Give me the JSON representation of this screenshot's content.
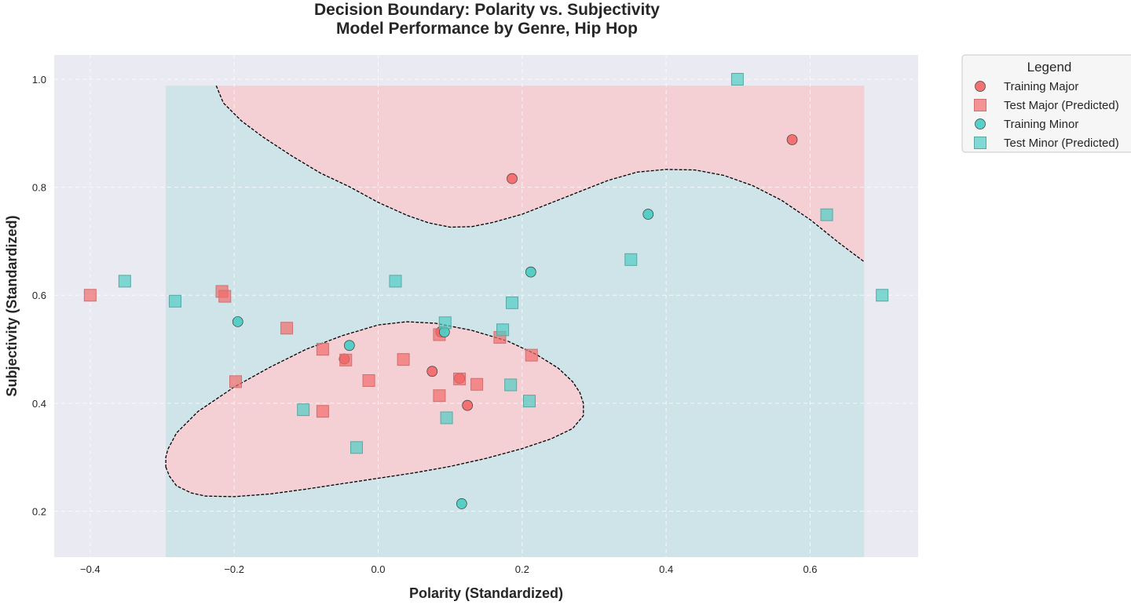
{
  "chart_data": {
    "type": "scatter",
    "title": "Decision Boundary: Polarity vs. Subjectivity",
    "subtitle": "Model Performance by Genre, Hip Hop",
    "xlabel": "Polarity (Standardized)",
    "ylabel": "Subjectivity (Standardized)",
    "xlim": [
      -0.45,
      0.75
    ],
    "ylim": [
      0.115,
      1.045
    ],
    "xticks": [
      -0.4,
      -0.2,
      0.0,
      0.2,
      0.4,
      0.6
    ],
    "xtick_labels": [
      "−0.4",
      "−0.2",
      "0.0",
      "0.2",
      "0.4",
      "0.6"
    ],
    "yticks": [
      0.2,
      0.4,
      0.6,
      0.8,
      1.0
    ],
    "ytick_labels": [
      "0.2",
      "0.4",
      "0.6",
      "0.8",
      "1.0"
    ],
    "grid": true,
    "legend": {
      "title": "Legend",
      "placement": "outside-top-right",
      "entries": [
        "Training Major",
        "Test Major (Predicted)",
        "Training Minor",
        "Test Minor (Predicted)"
      ]
    },
    "colors": {
      "major": "#f26b6b",
      "minor": "#4ecdc4",
      "major_region": "#f4cfd4",
      "minor_region": "#cfe4e8",
      "plot_background": "#eaeaf2",
      "boundary": "#000000"
    },
    "decision_regions": {
      "extent_x": [
        -0.295,
        0.675
      ],
      "extent_y": [
        0.115,
        0.988
      ],
      "default_class": "minor",
      "major_regions": [
        {
          "name": "upper-major-region",
          "boundary": [
            [
              -0.225,
              0.988
            ],
            [
              -0.215,
              0.956
            ],
            [
              -0.19,
              0.923
            ],
            [
              -0.16,
              0.893
            ],
            [
              -0.12,
              0.858
            ],
            [
              -0.08,
              0.826
            ],
            [
              -0.04,
              0.801
            ],
            [
              0.0,
              0.772
            ],
            [
              0.04,
              0.748
            ],
            [
              0.07,
              0.734
            ],
            [
              0.1,
              0.726
            ],
            [
              0.13,
              0.727
            ],
            [
              0.16,
              0.735
            ],
            [
              0.2,
              0.75
            ],
            [
              0.24,
              0.771
            ],
            [
              0.28,
              0.792
            ],
            [
              0.32,
              0.813
            ],
            [
              0.36,
              0.828
            ],
            [
              0.4,
              0.833
            ],
            [
              0.44,
              0.832
            ],
            [
              0.48,
              0.822
            ],
            [
              0.52,
              0.803
            ],
            [
              0.56,
              0.776
            ],
            [
              0.6,
              0.74
            ],
            [
              0.64,
              0.697
            ],
            [
              0.675,
              0.662
            ]
          ],
          "closure": [
            [
              0.675,
              0.988
            ]
          ]
        },
        {
          "name": "lower-major-region",
          "boundary": [
            [
              -0.295,
              0.282
            ],
            [
              -0.29,
              0.265
            ],
            [
              -0.28,
              0.247
            ],
            [
              -0.26,
              0.234
            ],
            [
              -0.24,
              0.228
            ],
            [
              -0.2,
              0.227
            ],
            [
              -0.15,
              0.232
            ],
            [
              -0.1,
              0.241
            ],
            [
              -0.05,
              0.251
            ],
            [
              0.0,
              0.261
            ],
            [
              0.05,
              0.271
            ],
            [
              0.1,
              0.283
            ],
            [
              0.15,
              0.298
            ],
            [
              0.2,
              0.316
            ],
            [
              0.24,
              0.334
            ],
            [
              0.27,
              0.353
            ],
            [
              0.285,
              0.377
            ],
            [
              0.285,
              0.4
            ],
            [
              0.28,
              0.42
            ],
            [
              0.27,
              0.44
            ],
            [
              0.25,
              0.465
            ],
            [
              0.22,
              0.49
            ],
            [
              0.18,
              0.515
            ],
            [
              0.13,
              0.535
            ],
            [
              0.08,
              0.548
            ],
            [
              0.04,
              0.551
            ],
            [
              0.0,
              0.545
            ],
            [
              -0.05,
              0.525
            ],
            [
              -0.1,
              0.5
            ],
            [
              -0.15,
              0.467
            ],
            [
              -0.2,
              0.43
            ],
            [
              -0.25,
              0.385
            ],
            [
              -0.28,
              0.345
            ],
            [
              -0.292,
              0.315
            ],
            [
              -0.295,
              0.3
            ]
          ]
        }
      ]
    },
    "series": [
      {
        "name": "Training Major",
        "marker": "circle",
        "points": [
          [
            -0.047,
            0.482
          ],
          [
            0.075,
            0.459
          ],
          [
            0.113,
            0.446
          ],
          [
            0.124,
            0.396
          ],
          [
            0.186,
            0.816
          ],
          [
            0.575,
            0.888
          ],
          [
            0.087,
            0.532
          ]
        ]
      },
      {
        "name": "Test Major (Predicted)",
        "marker": "square",
        "points": [
          [
            -0.4,
            0.6
          ],
          [
            -0.217,
            0.607
          ],
          [
            -0.213,
            0.598
          ],
          [
            -0.127,
            0.539
          ],
          [
            -0.077,
            0.5
          ],
          [
            -0.198,
            0.44
          ],
          [
            -0.077,
            0.385
          ],
          [
            -0.045,
            0.48
          ],
          [
            -0.013,
            0.442
          ],
          [
            0.035,
            0.481
          ],
          [
            0.085,
            0.527
          ],
          [
            0.085,
            0.414
          ],
          [
            0.113,
            0.445
          ],
          [
            0.137,
            0.435
          ],
          [
            0.169,
            0.522
          ],
          [
            0.213,
            0.489
          ]
        ]
      },
      {
        "name": "Training Minor",
        "marker": "circle",
        "points": [
          [
            -0.195,
            0.551
          ],
          [
            -0.04,
            0.507
          ],
          [
            0.092,
            0.532
          ],
          [
            0.212,
            0.643
          ],
          [
            0.375,
            0.75
          ],
          [
            0.116,
            0.214
          ]
        ]
      },
      {
        "name": "Test Minor (Predicted)",
        "marker": "square",
        "points": [
          [
            -0.352,
            0.626
          ],
          [
            -0.282,
            0.589
          ],
          [
            0.024,
            0.626
          ],
          [
            0.093,
            0.549
          ],
          [
            0.173,
            0.536
          ],
          [
            0.186,
            0.586
          ],
          [
            0.184,
            0.434
          ],
          [
            0.21,
            0.404
          ],
          [
            0.095,
            0.373
          ],
          [
            -0.104,
            0.388
          ],
          [
            -0.03,
            0.318
          ],
          [
            0.351,
            0.666
          ],
          [
            0.499,
            1.0
          ],
          [
            0.623,
            0.749
          ],
          [
            0.7,
            0.6
          ]
        ]
      }
    ]
  }
}
